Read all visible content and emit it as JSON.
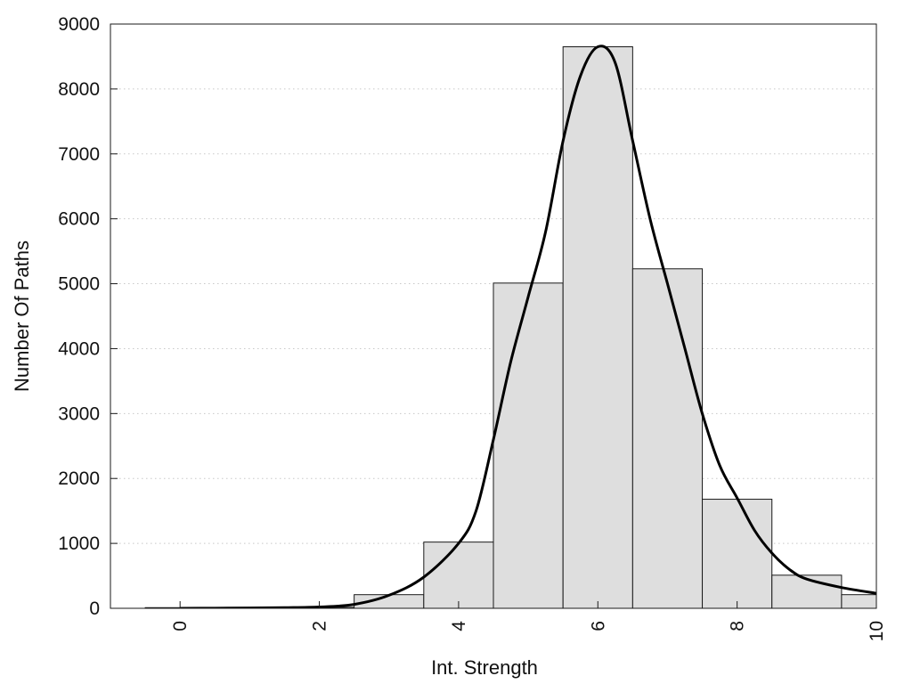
{
  "chart_data": {
    "type": "bar",
    "title": "",
    "xlabel": "Int. Strength",
    "ylabel": "Number Of Paths",
    "xlim": [
      -1,
      10
    ],
    "ylim": [
      0,
      9000
    ],
    "grid": "horizontal-dotted",
    "legend": "none",
    "x_ticks": [
      {
        "value": 0,
        "label": "0"
      },
      {
        "value": 2,
        "label": "2"
      },
      {
        "value": 4,
        "label": "4"
      },
      {
        "value": 6,
        "label": "6"
      },
      {
        "value": 8,
        "label": "8"
      },
      {
        "value": 10,
        "label": "10"
      }
    ],
    "y_ticks": [
      {
        "value": 0,
        "label": "0"
      },
      {
        "value": 1000,
        "label": "1000"
      },
      {
        "value": 2000,
        "label": "2000"
      },
      {
        "value": 3000,
        "label": "3000"
      },
      {
        "value": 4000,
        "label": "4000"
      },
      {
        "value": 5000,
        "label": "5000"
      },
      {
        "value": 6000,
        "label": "6000"
      },
      {
        "value": 7000,
        "label": "7000"
      },
      {
        "value": 8000,
        "label": "8000"
      },
      {
        "value": 9000,
        "label": "9000"
      }
    ],
    "bins": [
      {
        "center": 0,
        "value": 10
      },
      {
        "center": 1,
        "value": 10
      },
      {
        "center": 2,
        "value": 15
      },
      {
        "center": 3,
        "value": 210
      },
      {
        "center": 4,
        "value": 1020
      },
      {
        "center": 5,
        "value": 5010
      },
      {
        "center": 6,
        "value": 8650
      },
      {
        "center": 7,
        "value": 5230
      },
      {
        "center": 8,
        "value": 1680
      },
      {
        "center": 9,
        "value": 510
      },
      {
        "center": 10,
        "value": 210
      }
    ],
    "bin_width": 1,
    "curve": {
      "x": [
        0,
        0.5,
        1,
        1.5,
        2,
        2.5,
        3,
        3.5,
        4,
        4.25,
        4.5,
        4.75,
        5,
        5.25,
        5.5,
        5.75,
        6,
        6.25,
        6.5,
        6.75,
        7,
        7.25,
        7.5,
        7.75,
        8,
        8.25,
        8.5,
        8.75,
        9,
        9.5,
        10
      ],
      "y": [
        0,
        2,
        5,
        10,
        20,
        60,
        200,
        480,
        1000,
        1500,
        2600,
        3800,
        4800,
        5800,
        7200,
        8200,
        8650,
        8400,
        7200,
        6000,
        5000,
        4000,
        3000,
        2200,
        1700,
        1200,
        850,
        600,
        450,
        320,
        230
      ]
    },
    "colors": {
      "bar_fill": "#dedede",
      "bar_stroke": "#1a1a1a",
      "curve": "#000000",
      "grid": "#c8c8c8"
    }
  }
}
